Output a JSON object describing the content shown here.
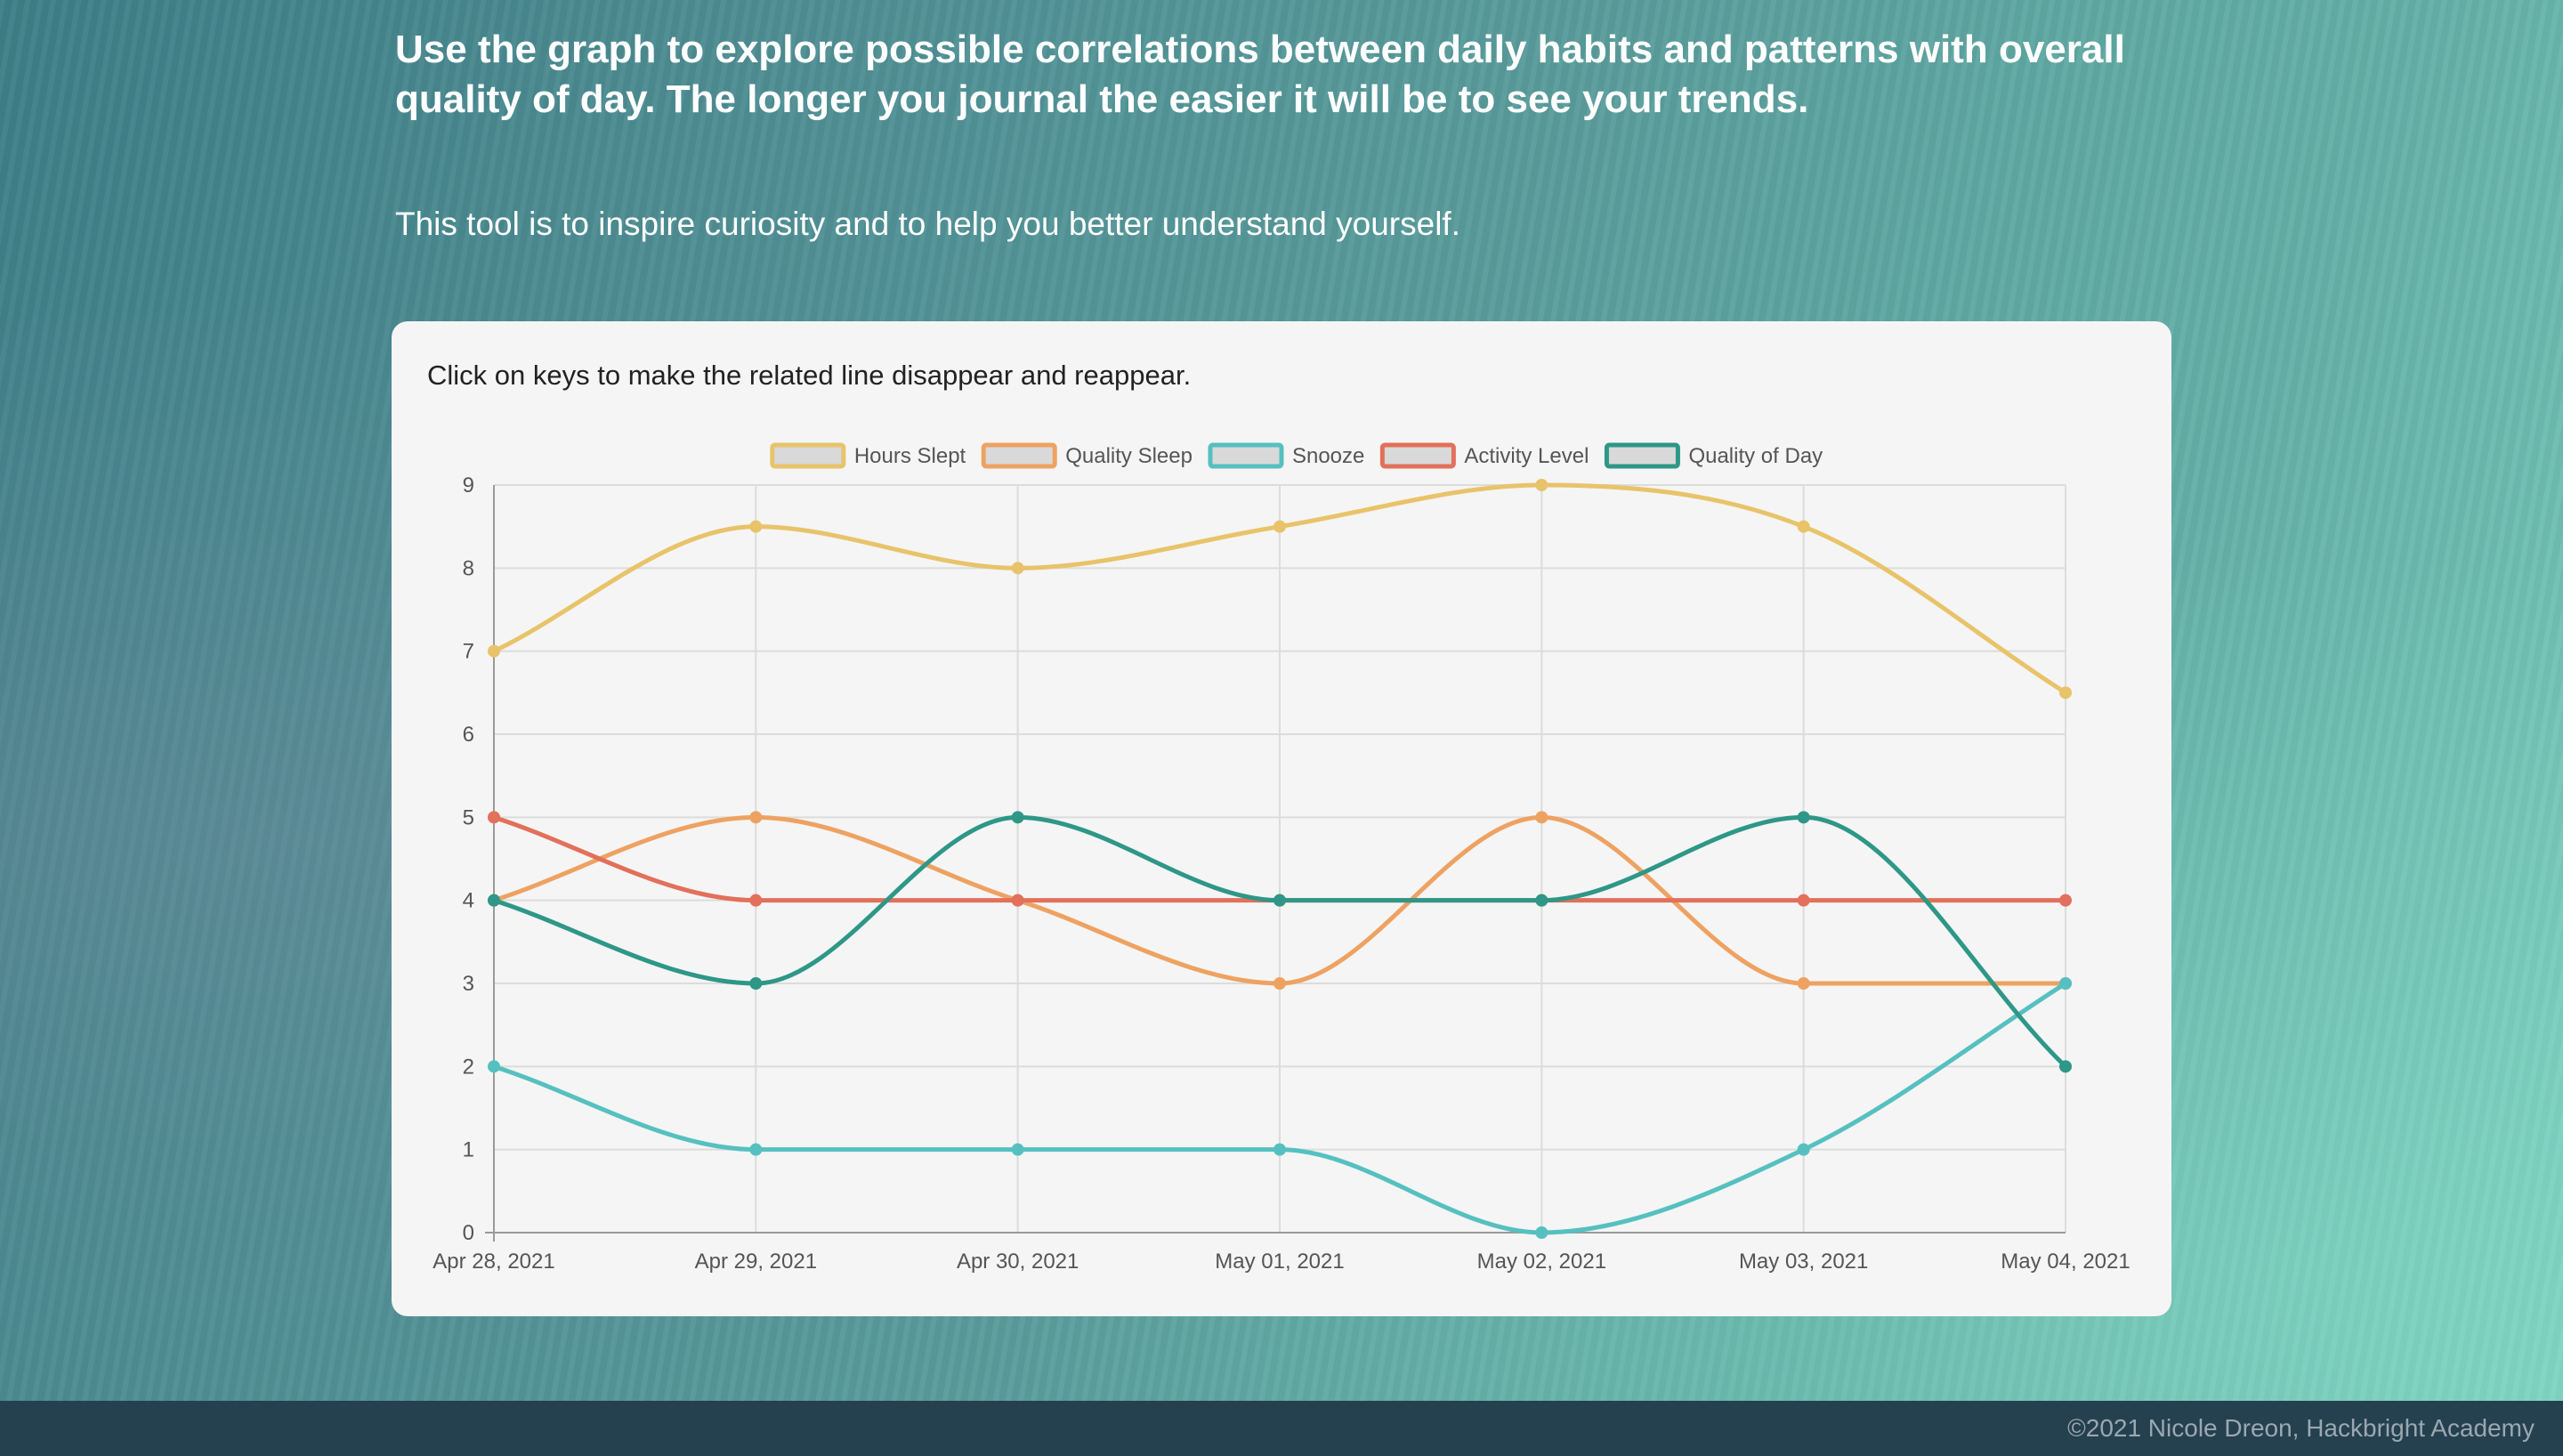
{
  "intro": {
    "heading": "Use the graph to explore possible correlations between daily habits and patterns with overall quality of day. The longer you journal the easier it will be to see your trends.",
    "subtext": "This tool is to inspire curiosity and to help you better understand yourself."
  },
  "card": {
    "note": "Click on keys to make the related line disappear and reappear."
  },
  "footer": {
    "copyright": "©2021 Nicole Dreon, Hackbright Academy"
  },
  "chart_data": {
    "type": "line",
    "x": [
      "Apr 28, 2021",
      "Apr 29, 2021",
      "Apr 30, 2021",
      "May 01, 2021",
      "May 02, 2021",
      "May 03, 2021",
      "May 04, 2021"
    ],
    "ylim": [
      0,
      9
    ],
    "yticks": [
      0,
      1,
      2,
      3,
      4,
      5,
      6,
      7,
      8,
      9
    ],
    "grid": true,
    "legend_position": "top",
    "series": [
      {
        "name": "Hours Slept",
        "color": "#e8c36a",
        "values": [
          7,
          8.5,
          8,
          8.5,
          9,
          8.5,
          6.5
        ]
      },
      {
        "name": "Quality Sleep",
        "color": "#eea262",
        "values": [
          4,
          5,
          4,
          3,
          5,
          3,
          3
        ]
      },
      {
        "name": "Snooze",
        "color": "#56c0c0",
        "values": [
          2,
          1,
          1,
          1,
          0,
          1,
          3
        ]
      },
      {
        "name": "Activity Level",
        "color": "#e2705a",
        "values": [
          5,
          4,
          4,
          4,
          4,
          4,
          4
        ]
      },
      {
        "name": "Quality of Day",
        "color": "#2e9787",
        "values": [
          4,
          3,
          5,
          4,
          4,
          5,
          2
        ]
      }
    ]
  }
}
